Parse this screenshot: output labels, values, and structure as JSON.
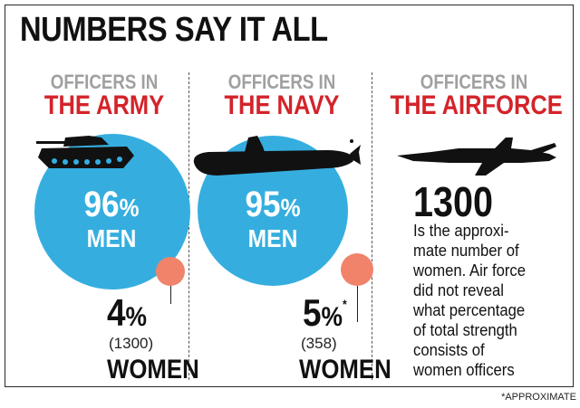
{
  "title": "NUMBERS SAY IT ALL",
  "footnote": "*APPROXIMATE",
  "colors": {
    "men_circle": "#35aedf",
    "women_circle": "#f0836a",
    "heading_red": "#d4232a",
    "heading_grey": "#a0a0a0"
  },
  "army": {
    "label_top": "OFFICERS IN",
    "label_bottom": "THE ARMY",
    "icon": "tank-icon",
    "men_pct": "96",
    "pct_sign": "%",
    "men_label": "MEN",
    "women_pct": "4",
    "women_count": "(1300)",
    "women_label": "WOMEN"
  },
  "navy": {
    "label_top": "OFFICERS IN",
    "label_bottom": "THE NAVY",
    "icon": "submarine-icon",
    "men_pct": "95",
    "pct_sign": "%",
    "men_label": "MEN",
    "women_pct": "5",
    "women_marker": "*",
    "women_count": "(358)",
    "women_label": "WOMEN"
  },
  "airforce": {
    "label_top": "OFFICERS IN",
    "label_bottom": "THE AIRFORCE",
    "icon": "fighter-jet-icon",
    "number": "1300",
    "description_lines": [
      "Is the approxi-",
      "mate number of",
      "women. Air force",
      "did not reveal",
      "what percentage",
      "of total strength",
      "consists of",
      "women officers"
    ]
  }
}
